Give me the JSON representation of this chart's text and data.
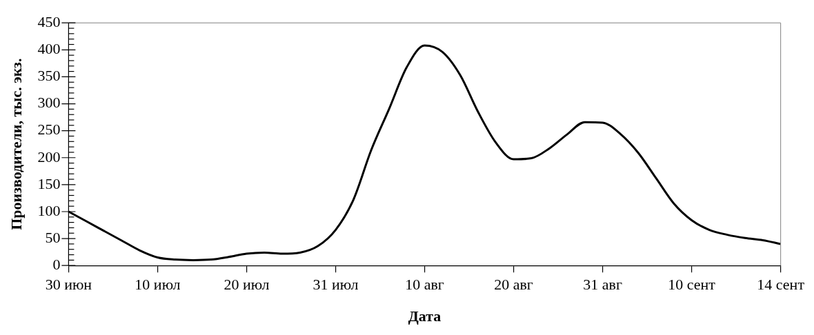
{
  "chart_data": {
    "type": "line",
    "xlabel": "Дата",
    "ylabel": "Производители, тыс. экз.",
    "categories": [
      "30 июн",
      null,
      null,
      null,
      null,
      "10 июл",
      null,
      null,
      null,
      null,
      "20 июл",
      null,
      null,
      null,
      null,
      "31 июл",
      null,
      null,
      null,
      null,
      "10 авг",
      null,
      null,
      null,
      null,
      "20 авг",
      null,
      null,
      null,
      null,
      "31 авг",
      null,
      null,
      null,
      null,
      "10 сент",
      null,
      null,
      null,
      null,
      "14 сент"
    ],
    "series": [
      {
        "color": "#000000",
        "values": [
          100,
          82,
          64,
          46,
          28,
          15,
          11,
          10,
          11,
          16,
          22,
          24,
          22,
          24,
          36,
          66,
          122,
          214,
          290,
          368,
          408,
          396,
          353,
          285,
          228,
          197,
          199,
          217,
          243,
          266,
          265,
          244,
          209,
          162,
          115,
          84,
          66,
          57,
          51,
          47,
          40
        ]
      }
    ],
    "ylim": [
      0,
      450
    ],
    "yticks": [
      0,
      {
        "value": 10,
        "label": null
      },
      {
        "value": 20,
        "label": null
      },
      {
        "value": 30,
        "label": null
      },
      {
        "value": 40,
        "label": null
      },
      50,
      {
        "value": 60,
        "label": null
      },
      {
        "value": 70,
        "label": null
      },
      {
        "value": 80,
        "label": null
      },
      {
        "value": 90,
        "label": null
      },
      100,
      {
        "value": 110,
        "label": null
      },
      {
        "value": 120,
        "label": null
      },
      {
        "value": 130,
        "label": null
      },
      {
        "value": 140,
        "label": null
      },
      150,
      {
        "value": 160,
        "label": null
      },
      {
        "value": 170,
        "label": null
      },
      {
        "value": 180,
        "label": null
      },
      {
        "value": 190,
        "label": null
      },
      200,
      {
        "value": 210,
        "label": null
      },
      {
        "value": 220,
        "label": null
      },
      {
        "value": 230,
        "label": null
      },
      {
        "value": 240,
        "label": null
      },
      250,
      {
        "value": 260,
        "label": null
      },
      {
        "value": 270,
        "label": null
      },
      {
        "value": 280,
        "label": null
      },
      {
        "value": 290,
        "label": null
      },
      300,
      {
        "value": 310,
        "label": null
      },
      {
        "value": 320,
        "label": null
      },
      {
        "value": 330,
        "label": null
      },
      {
        "value": 340,
        "label": null
      },
      350,
      {
        "value": 360,
        "label": null
      },
      {
        "value": 370,
        "label": null
      },
      {
        "value": 380,
        "label": null
      },
      {
        "value": 390,
        "label": null
      },
      400,
      {
        "value": 410,
        "label": null
      },
      {
        "value": 420,
        "label": null
      },
      {
        "value": 430,
        "label": null
      },
      {
        "value": 440,
        "label": null
      },
      450
    ],
    "grid": false,
    "legend": false,
    "marker": "none",
    "line_style": "solid"
  }
}
